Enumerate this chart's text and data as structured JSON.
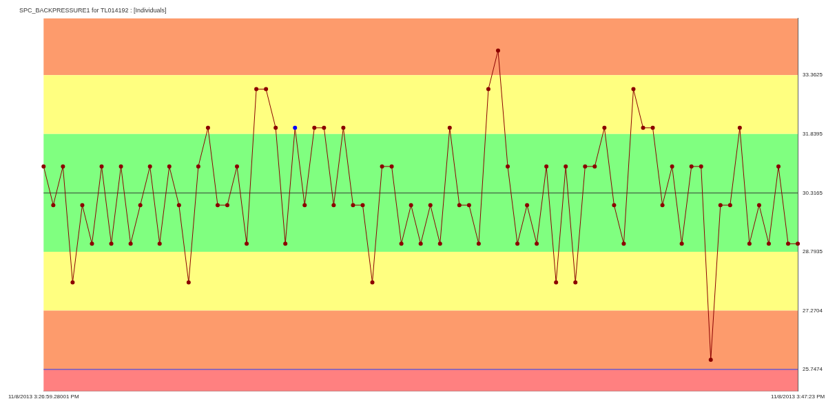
{
  "chart_data": {
    "type": "line",
    "title": "SPC_BACKPRESSURE1 for TL014192 : [Individuals]",
    "categories": [
      "11/8/2013 3:26:59.28001 PM",
      null,
      null,
      null,
      null,
      null,
      null,
      null,
      null,
      null,
      null,
      null,
      null,
      null,
      null,
      null,
      null,
      null,
      null,
      null,
      null,
      null,
      null,
      null,
      null,
      null,
      null,
      null,
      null,
      null,
      null,
      null,
      null,
      null,
      null,
      null,
      null,
      null,
      null,
      null,
      null,
      null,
      null,
      null,
      null,
      null,
      null,
      null,
      null,
      null,
      null,
      null,
      null,
      null,
      null,
      null,
      null,
      null,
      null,
      null,
      null,
      null,
      null,
      null,
      null,
      null,
      null,
      null,
      null,
      null,
      null,
      null,
      null,
      null,
      null,
      null,
      null,
      null,
      "11/8/2013 3:47:23 PM"
    ],
    "series": [
      {
        "color": "#8b0000",
        "colors": [
          "#8b0000",
          "#8b0000",
          "#8b0000",
          "#8b0000",
          "#8b0000",
          "#8b0000",
          "#8b0000",
          "#8b0000",
          "#8b0000",
          "#8b0000",
          "#8b0000",
          "#8b0000",
          "#8b0000",
          "#8b0000",
          "#8b0000",
          "#8b0000",
          "#8b0000",
          "#8b0000",
          "#8b0000",
          "#8b0000",
          "#8b0000",
          "#8b0000",
          "#8b0000",
          "#8b0000",
          "#8b0000",
          "#8b0000",
          "#0000ff",
          "#8b0000",
          "#8b0000",
          "#8b0000",
          "#8b0000",
          "#8b0000",
          "#8b0000",
          "#8b0000",
          "#8b0000",
          "#8b0000",
          "#8b0000",
          "#8b0000",
          "#8b0000",
          "#8b0000",
          "#8b0000",
          "#8b0000",
          "#8b0000",
          "#8b0000",
          "#8b0000",
          "#8b0000",
          "#8b0000",
          "#8b0000",
          "#8b0000",
          "#8b0000",
          "#8b0000",
          "#8b0000",
          "#8b0000",
          "#8b0000",
          "#8b0000",
          "#8b0000",
          "#8b0000",
          "#8b0000",
          "#8b0000",
          "#8b0000",
          "#8b0000",
          "#8b0000",
          "#8b0000",
          "#8b0000",
          "#8b0000",
          "#8b0000",
          "#8b0000",
          "#8b0000",
          "#8b0000",
          "#8b0000",
          "#8b0000",
          "#8b0000",
          "#8b0000",
          "#8b0000",
          "#8b0000",
          "#8b0000",
          "#8b0000",
          "#8b0000",
          "#8b0000"
        ],
        "values": [
          31,
          30,
          31,
          28,
          30,
          29,
          31,
          29,
          31,
          29,
          30,
          31,
          29,
          31,
          30,
          28,
          31,
          32,
          30,
          30,
          31,
          29,
          33,
          33,
          32,
          29,
          32,
          30,
          32,
          32,
          30,
          32,
          30,
          30,
          28,
          31,
          31,
          29,
          30,
          29,
          30,
          29,
          32,
          30,
          30,
          29,
          33,
          34,
          31,
          29,
          30,
          29,
          31,
          28,
          31,
          28,
          31,
          31,
          32,
          30,
          29,
          33,
          32,
          32,
          30,
          31,
          29,
          31,
          31,
          26,
          30,
          30,
          32,
          29,
          30,
          29,
          31,
          29,
          29
        ]
      }
    ],
    "ylim": [
      25.19,
      34.83
    ],
    "yticks": [
      25.7474,
      27.2704,
      28.7935,
      30.3165,
      31.8395,
      33.3625
    ],
    "bands": [
      {
        "axis": "y",
        "from": 33.3625,
        "to": 34.83,
        "color": "#fd9b6c"
      },
      {
        "axis": "y",
        "from": 31.8395,
        "to": 33.3625,
        "color": "#ffff80"
      },
      {
        "axis": "y",
        "from": 28.7935,
        "to": 31.8395,
        "color": "#80ff80"
      },
      {
        "axis": "y",
        "from": 27.2704,
        "to": 28.7935,
        "color": "#ffff80"
      },
      {
        "axis": "y",
        "from": 25.7474,
        "to": 27.2704,
        "color": "#fd9b6c"
      },
      {
        "axis": "y",
        "from": 25.19,
        "to": 25.7474,
        "color": "#ff8080"
      }
    ],
    "ref_lines": [
      {
        "axis": "y",
        "value": 30.3165,
        "color": "#4a7a4a"
      },
      {
        "axis": "y",
        "value": 25.7474,
        "color": "#6a5acd"
      }
    ],
    "grid": false,
    "legend": false,
    "marker": "circle",
    "line_style": "solid"
  }
}
